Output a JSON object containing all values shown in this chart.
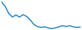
{
  "x": [
    0,
    1,
    2,
    3,
    4,
    5,
    6,
    7,
    8,
    9,
    10,
    11,
    12,
    13,
    14,
    15,
    16,
    17,
    18,
    19,
    20,
    21,
    22
  ],
  "y": [
    100,
    85,
    60,
    48,
    55,
    48,
    56,
    50,
    38,
    22,
    15,
    12,
    14,
    10,
    8,
    10,
    14,
    18,
    15,
    18,
    14,
    12,
    13
  ],
  "line_color": "#2b8cc4",
  "linewidth": 1.3,
  "background_color": "#ffffff",
  "ylim": [
    5,
    105
  ],
  "xlim": [
    0,
    22
  ]
}
